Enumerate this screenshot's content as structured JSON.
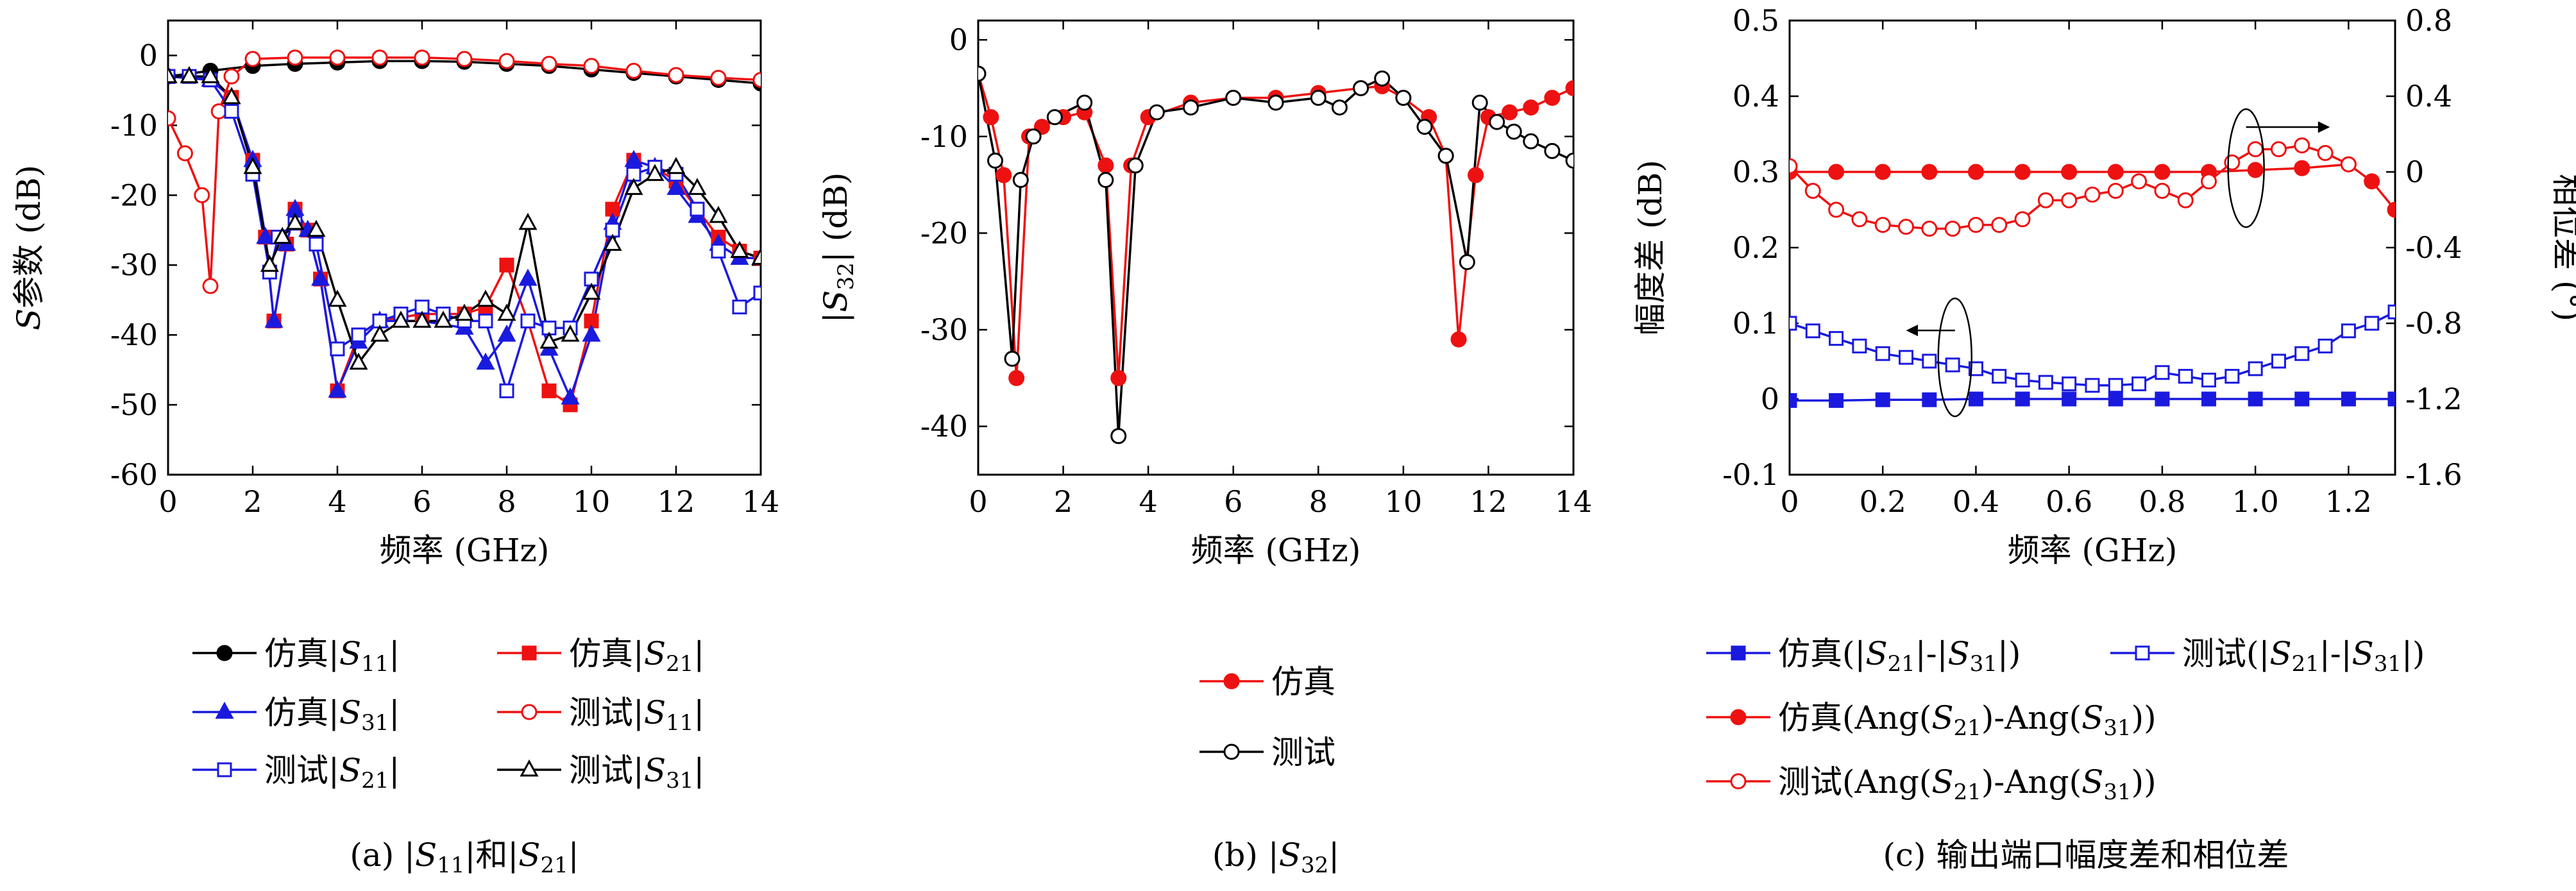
{
  "charts": [
    {
      "id": "a",
      "caption_parts": [
        "(a) |",
        "S",
        "11",
        "|和|",
        "S",
        "21",
        "|"
      ],
      "xlabel": "频率 (GHz)",
      "ylabel_parts": [
        "S",
        "参数 (dB)"
      ],
      "x_ticks": [
        "0",
        "2",
        "4",
        "6",
        "8",
        "10",
        "12",
        "14"
      ],
      "y_ticks": [
        "0",
        "-10",
        "-20",
        "-30",
        "-40",
        "-50",
        "-60"
      ],
      "legend": [
        {
          "parts": [
            "仿真|",
            "S",
            "11",
            "|"
          ]
        },
        {
          "parts": [
            "仿真|",
            "S",
            "21",
            "|"
          ]
        },
        {
          "parts": [
            "仿真|",
            "S",
            "31",
            "|"
          ]
        },
        {
          "parts": [
            "测试|",
            "S",
            "11",
            "|"
          ]
        },
        {
          "parts": [
            "测试|",
            "S",
            "21",
            "|"
          ]
        },
        {
          "parts": [
            "测试|",
            "S",
            "31",
            "|"
          ]
        }
      ]
    },
    {
      "id": "b",
      "caption_parts": [
        "(b) |",
        "S",
        "32",
        "|"
      ],
      "xlabel": "频率 (GHz)",
      "ylabel_parts": [
        "|",
        "S",
        "32",
        "| (dB)"
      ],
      "x_ticks": [
        "0",
        "2",
        "4",
        "6",
        "8",
        "10",
        "12",
        "14"
      ],
      "y_ticks": [
        "0",
        "-10",
        "-20",
        "-30",
        "-40"
      ],
      "legend": [
        {
          "parts": [
            "仿真"
          ]
        },
        {
          "parts": [
            "测试"
          ]
        }
      ]
    },
    {
      "id": "c",
      "caption_parts": [
        "(c) 输出端口幅度差和相位差"
      ],
      "xlabel": "频率 (GHz)",
      "ylabel_left": "幅度差 (dB)",
      "ylabel_right": "相位差 (°)",
      "x_ticks": [
        "0",
        "0.2",
        "0.4",
        "0.6",
        "0.8",
        "1.0",
        "1.2"
      ],
      "y_ticks_left": [
        "0.5",
        "0.4",
        "0.3",
        "0.2",
        "0.1",
        "0",
        "-0.1"
      ],
      "y_ticks_right": [
        "0.8",
        "0.4",
        "0",
        "-0.4",
        "-0.8",
        "-1.2",
        "-1.6"
      ],
      "legend": [
        {
          "parts": [
            "仿真(|",
            "S",
            "21",
            "|-|",
            "S",
            "31",
            "|)"
          ]
        },
        {
          "parts": [
            "测试(|",
            "S",
            "21",
            "|-|",
            "S",
            "31",
            "|)"
          ]
        },
        {
          "parts": [
            "仿真(Ang(",
            "S",
            "21",
            ")-Ang(",
            "S",
            "31",
            "))"
          ]
        },
        {
          "parts": [
            "测试(Ang(",
            "S",
            "21",
            ")-Ang(",
            "S",
            "31",
            "))"
          ]
        }
      ]
    }
  ],
  "chart_data": [
    {
      "type": "line",
      "xlim": [
        0,
        14
      ],
      "ylim": [
        -60,
        5
      ],
      "series": [
        {
          "name": "仿真|S11|",
          "color": "#000000",
          "marker": "filled-circle",
          "x": [
            0,
            1,
            2,
            3,
            4,
            5,
            6,
            7,
            8,
            9,
            10,
            11,
            12,
            13,
            14
          ],
          "y": [
            -3,
            -2.2,
            -1.5,
            -1.2,
            -1,
            -0.8,
            -0.8,
            -0.9,
            -1.2,
            -1.5,
            -2,
            -2.5,
            -3,
            -3.5,
            -4
          ]
        },
        {
          "name": "仿真|S21|",
          "color": "#ee1111",
          "marker": "filled-square",
          "x": [
            0,
            1,
            1.5,
            2,
            2.3,
            2.5,
            2.8,
            3,
            3.3,
            3.6,
            4,
            4.5,
            5,
            6,
            7,
            7.5,
            8,
            8.5,
            9,
            9.5,
            10,
            10.5,
            11,
            11.5,
            12,
            12.5,
            13,
            13.5,
            14
          ],
          "y": [
            -3,
            -3.5,
            -6,
            -15,
            -26,
            -38,
            -27,
            -22,
            -25,
            -32,
            -48,
            -40,
            -38,
            -37,
            -37,
            -36,
            -30,
            -38,
            -48,
            -50,
            -38,
            -22,
            -15,
            -16,
            -18,
            -22,
            -26,
            -28,
            -29
          ]
        },
        {
          "name": "仿真|S31|",
          "color": "#1a1adf",
          "marker": "filled-triangle",
          "x": [
            0,
            1,
            1.5,
            2,
            2.3,
            2.5,
            2.8,
            3,
            3.3,
            3.6,
            4,
            4.5,
            5,
            6,
            7,
            7.5,
            8,
            8.5,
            9,
            9.5,
            10,
            10.5,
            11,
            11.5,
            12,
            12.5,
            13,
            13.5,
            14
          ],
          "y": [
            -3,
            -3.5,
            -6,
            -15,
            -26,
            -38,
            -27,
            -22,
            -25,
            -32,
            -48,
            -41,
            -38,
            -38,
            -39,
            -44,
            -40,
            -32,
            -42,
            -49,
            -40,
            -24,
            -15,
            -16,
            -19,
            -23,
            -27,
            -29,
            -29
          ]
        },
        {
          "name": "测试|S11|",
          "color": "#ee1111",
          "marker": "open-circle",
          "x": [
            0,
            0.4,
            0.8,
            1,
            1.2,
            1.5,
            2,
            3,
            4,
            5,
            6,
            7,
            8,
            9,
            10,
            11,
            12,
            13,
            14
          ],
          "y": [
            -9,
            -14,
            -20,
            -33,
            -8,
            -3,
            -0.5,
            -0.3,
            -0.3,
            -0.3,
            -0.3,
            -0.5,
            -0.8,
            -1.2,
            -1.5,
            -2.2,
            -2.8,
            -3.2,
            -3.5
          ]
        },
        {
          "name": "测试|S21|",
          "color": "#1a1adf",
          "marker": "open-square",
          "x": [
            0,
            0.5,
            1,
            1.5,
            2,
            2.4,
            2.6,
            3,
            3.5,
            4,
            4.5,
            5,
            5.5,
            6,
            6.5,
            7,
            7.5,
            8,
            8.5,
            9,
            9.5,
            10,
            10.5,
            11,
            11.5,
            12,
            12.5,
            13,
            13.5,
            14
          ],
          "y": [
            -3,
            -3,
            -3.5,
            -8,
            -17,
            -31,
            -26,
            -24,
            -27,
            -42,
            -40,
            -38,
            -37,
            -36,
            -37,
            -38,
            -38,
            -48,
            -38,
            -39,
            -39,
            -32,
            -25,
            -17,
            -16,
            -17,
            -22,
            -28,
            -36,
            -34
          ]
        },
        {
          "name": "测试|S31|",
          "color": "#000000",
          "marker": "open-triangle",
          "x": [
            0,
            0.5,
            1,
            1.5,
            2,
            2.4,
            2.7,
            3,
            3.5,
            4,
            4.5,
            5,
            5.5,
            6,
            6.5,
            7,
            7.5,
            8,
            8.5,
            9,
            9.5,
            10,
            10.5,
            11,
            11.5,
            12,
            12.5,
            13,
            13.5,
            14
          ],
          "y": [
            -3,
            -3,
            -3,
            -6,
            -16,
            -30,
            -26,
            -24,
            -25,
            -35,
            -44,
            -40,
            -38,
            -38,
            -38,
            -37,
            -35,
            -37,
            -24,
            -41,
            -40,
            -34,
            -27,
            -19,
            -17,
            -16,
            -19,
            -23,
            -28,
            -29
          ]
        }
      ]
    },
    {
      "type": "line",
      "xlim": [
        0,
        14
      ],
      "ylim": [
        -45,
        2
      ],
      "series": [
        {
          "name": "仿真",
          "color": "#ee1111",
          "marker": "filled-circle",
          "x": [
            0,
            0.3,
            0.6,
            0.9,
            1.2,
            1.5,
            2,
            2.5,
            3,
            3.3,
            3.6,
            4,
            5,
            6,
            7,
            8,
            9,
            9.5,
            10,
            10.6,
            11,
            11.3,
            11.7,
            12,
            12.5,
            13,
            13.5,
            14
          ],
          "y": [
            -3.5,
            -8,
            -14,
            -35,
            -10,
            -9,
            -8,
            -7.5,
            -13,
            -35,
            -13,
            -8,
            -6.5,
            -6,
            -6,
            -5.5,
            -5,
            -4.8,
            -6,
            -8,
            -12,
            -31,
            -14,
            -8,
            -7.5,
            -7,
            -6,
            -5
          ]
        },
        {
          "name": "测试",
          "color": "#000000",
          "marker": "open-circle",
          "x": [
            0,
            0.4,
            0.8,
            1,
            1.3,
            1.8,
            2.5,
            3,
            3.3,
            3.7,
            4.2,
            5,
            6,
            7,
            8,
            8.5,
            9,
            9.5,
            10,
            10.5,
            11,
            11.5,
            11.8,
            12.2,
            12.6,
            13,
            13.5,
            14
          ],
          "y": [
            -3.5,
            -12.5,
            -33,
            -14.5,
            -10,
            -8,
            -6.5,
            -14.5,
            -41,
            -13,
            -7.5,
            -7,
            -6,
            -6.5,
            -6,
            -7,
            -5,
            -4,
            -6,
            -9,
            -12,
            -23,
            -6.5,
            -8.5,
            -9.5,
            -10.5,
            -11.5,
            -12.5
          ]
        }
      ]
    },
    {
      "type": "line",
      "xlim": [
        0,
        1.3
      ],
      "ylim_left": [
        -0.1,
        0.5
      ],
      "ylim_right": [
        -1.6,
        0.8
      ],
      "series": [
        {
          "name": "仿真(|S21|-|S31|)",
          "axis": "left",
          "color": "#1a1adf",
          "marker": "filled-square",
          "x": [
            0,
            0.1,
            0.2,
            0.3,
            0.4,
            0.5,
            0.6,
            0.7,
            0.8,
            0.9,
            1.0,
            1.1,
            1.2,
            1.3
          ],
          "y": [
            -0.002,
            -0.002,
            -0.001,
            -0.001,
            0,
            0,
            0,
            0,
            0,
            0,
            0,
            0,
            0,
            0
          ]
        },
        {
          "name": "测试(|S21|-|S31|)",
          "axis": "left",
          "color": "#1a1adf",
          "marker": "open-square",
          "x": [
            0,
            0.05,
            0.1,
            0.15,
            0.2,
            0.25,
            0.3,
            0.35,
            0.4,
            0.45,
            0.5,
            0.55,
            0.6,
            0.65,
            0.7,
            0.75,
            0.8,
            0.85,
            0.9,
            0.95,
            1.0,
            1.05,
            1.1,
            1.15,
            1.2,
            1.25,
            1.3
          ],
          "y": [
            0.1,
            0.09,
            0.08,
            0.07,
            0.06,
            0.055,
            0.05,
            0.045,
            0.04,
            0.03,
            0.025,
            0.022,
            0.02,
            0.018,
            0.018,
            0.02,
            0.035,
            0.03,
            0.025,
            0.03,
            0.04,
            0.05,
            0.06,
            0.07,
            0.09,
            0.1,
            0.115
          ]
        },
        {
          "name": "仿真(Ang(S21)-Ang(S31))",
          "axis": "right",
          "color": "#ee1111",
          "marker": "filled-circle",
          "x": [
            0,
            0.1,
            0.2,
            0.3,
            0.4,
            0.5,
            0.6,
            0.7,
            0.8,
            0.9,
            1.0,
            1.1,
            1.2,
            1.25,
            1.3
          ],
          "y": [
            0,
            0,
            0,
            0,
            0,
            0,
            0,
            0,
            0,
            0,
            0.01,
            0.02,
            0.04,
            -0.05,
            -0.2
          ]
        },
        {
          "name": "测试(Ang(S21)-Ang(S31))",
          "axis": "right",
          "color": "#ee1111",
          "marker": "open-circle",
          "x": [
            0,
            0.05,
            0.1,
            0.15,
            0.2,
            0.25,
            0.3,
            0.35,
            0.4,
            0.45,
            0.5,
            0.55,
            0.6,
            0.65,
            0.7,
            0.75,
            0.8,
            0.85,
            0.9,
            0.95,
            1.0,
            1.05,
            1.1,
            1.15,
            1.2
          ],
          "y": [
            0.03,
            -0.1,
            -0.2,
            -0.25,
            -0.28,
            -0.29,
            -0.3,
            -0.3,
            -0.28,
            -0.28,
            -0.25,
            -0.15,
            -0.15,
            -0.12,
            -0.1,
            -0.05,
            -0.1,
            -0.15,
            -0.05,
            0.05,
            0.12,
            0.12,
            0.14,
            0.1,
            0.04
          ]
        }
      ]
    }
  ]
}
